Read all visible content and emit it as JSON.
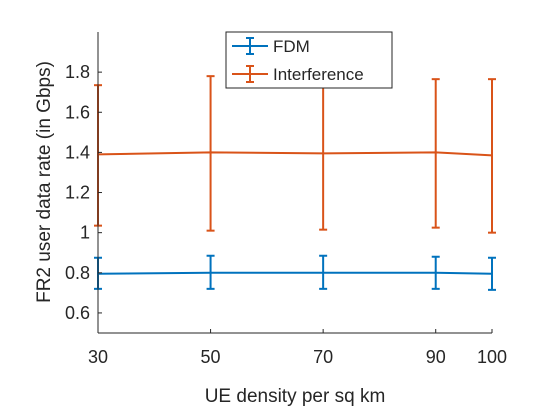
{
  "chart_data": {
    "type": "line",
    "title": "",
    "xlabel": "UE density per sq km",
    "ylabel": "FR2 user data rate (in Gbps)",
    "x": [
      30,
      50,
      70,
      90,
      100
    ],
    "x_ticks": [
      "30",
      "50",
      "70",
      "90",
      "100"
    ],
    "xlim": [
      30,
      100
    ],
    "ylim": [
      0.5,
      2.0
    ],
    "y_ticks": [
      "0.6",
      "0.8",
      "1",
      "1.2",
      "1.4",
      "1.6",
      "1.8"
    ],
    "y_tick_values": [
      0.6,
      0.8,
      1.0,
      1.2,
      1.4,
      1.6,
      1.8
    ],
    "grid": false,
    "legend_position": "top-center",
    "series": [
      {
        "name": "FDM",
        "color": "#0072BD",
        "values": [
          0.795,
          0.8,
          0.8,
          0.8,
          0.795
        ],
        "error_low": [
          0.72,
          0.72,
          0.72,
          0.72,
          0.715
        ],
        "error_high": [
          0.875,
          0.885,
          0.885,
          0.88,
          0.875
        ]
      },
      {
        "name": "Interference",
        "color": "#D95319",
        "values": [
          1.39,
          1.4,
          1.395,
          1.4,
          1.385
        ],
        "error_low": [
          1.035,
          1.01,
          1.015,
          1.025,
          1.0
        ],
        "error_high": [
          1.735,
          1.78,
          1.785,
          1.765,
          1.765
        ]
      }
    ]
  }
}
